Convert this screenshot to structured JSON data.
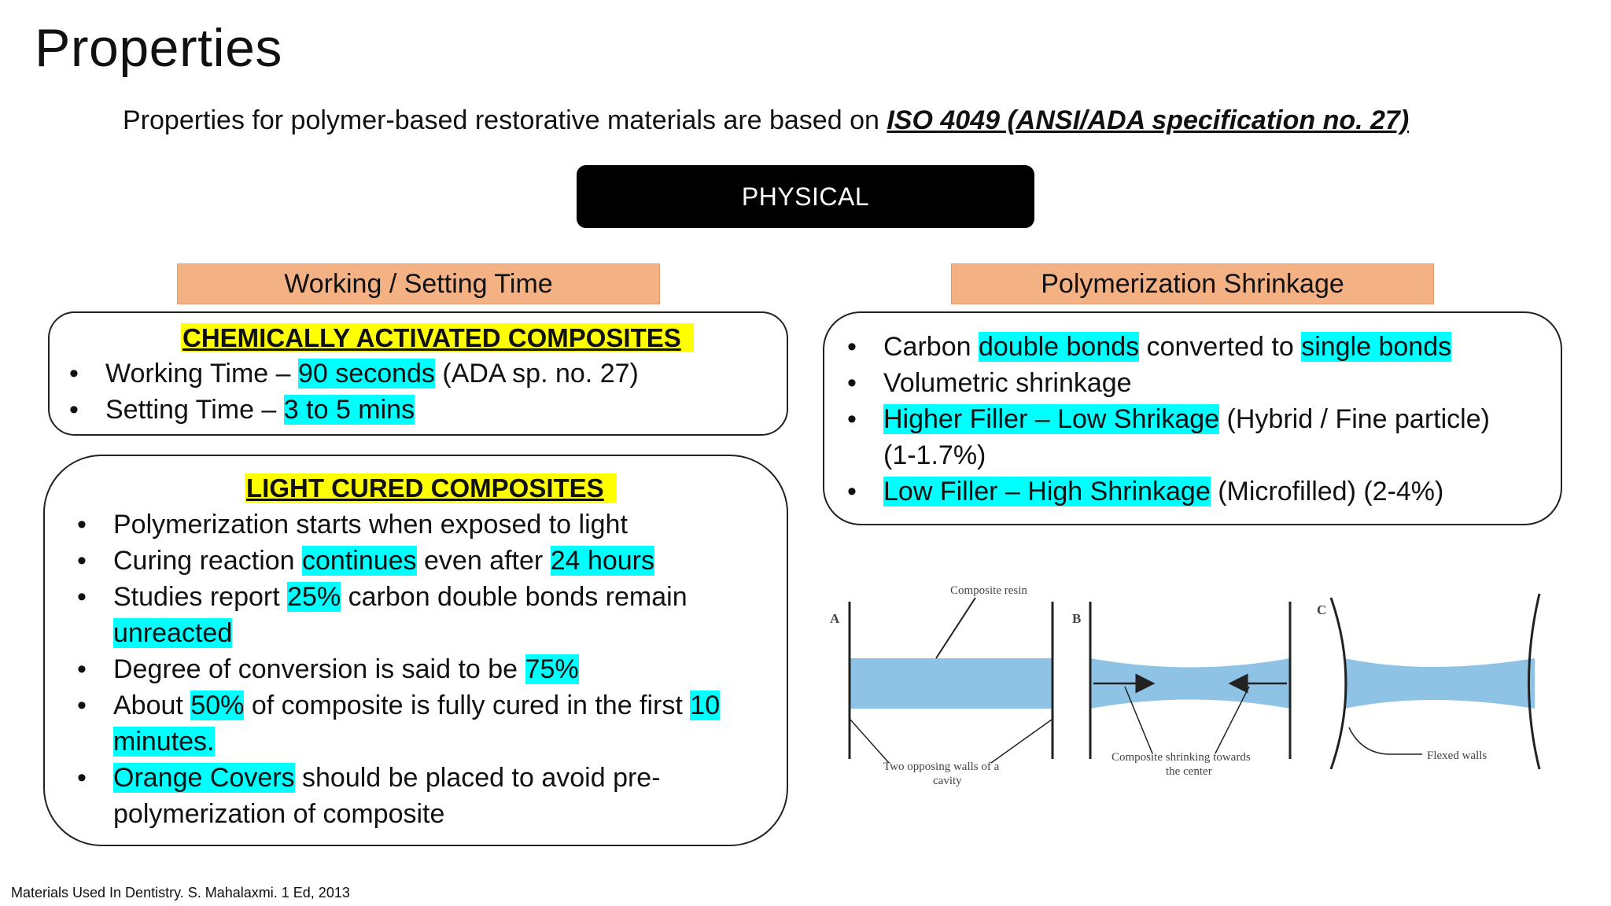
{
  "slide": {
    "title": "Properties",
    "subtitle_text": "Properties for polymer-based restorative materials are based on",
    "subtitle_ref": "ISO 4049 (ANSI/ADA specification no. 27)",
    "section_label": "PHYSICAL",
    "citation": "Materials Used In Dentistry. S. Mahalaxmi. 1 Ed, 2013"
  },
  "working_setting": {
    "header": "Working / Setting Time",
    "chemical": {
      "title": "CHEMICALLY ACTIVATED COMPOSITES",
      "working": {
        "pre": "Working Time –",
        "hl": "90 seconds",
        "post": "(ADA sp. no. 27)"
      },
      "setting": {
        "pre": "Setting Time –",
        "hl": "3 to 5 mins"
      }
    },
    "light": {
      "title": "LIGHT CURED COMPOSITES",
      "b1": "Polymerization starts when exposed to light",
      "b2": {
        "a": "Curing reaction",
        "hl1": "continues",
        "b": "even after",
        "hl2": "24 hours"
      },
      "b3": {
        "a": "Studies report",
        "hl1": "25%",
        "b": "carbon double bonds remain",
        "hl2": "unreacted"
      },
      "b4": {
        "a": "Degree of conversion is said to be",
        "hl1": "75%"
      },
      "b5": {
        "a": "About",
        "hl1": "50%",
        "b": "of composite is fully cured in the first",
        "hl2": "10",
        "hl3": "minutes."
      },
      "b6": {
        "hl1": "Orange Covers",
        "a": "should be placed to avoid pre-",
        "b": "polymerization of composite"
      }
    }
  },
  "shrinkage": {
    "header": "Polymerization Shrinkage",
    "b1": {
      "a": "Carbon",
      "hl1": "double bonds",
      "b": "converted to",
      "hl2": "single bonds"
    },
    "b2": "Volumetric shrinkage",
    "b3": {
      "hl1": "Higher Filler – Low Shrikage",
      "a": "(Hybrid / Fine particle)",
      "b": "(1-1.7%)"
    },
    "b4": {
      "hl1": "Low Filler – High Shrinkage",
      "a": "(Microfilled) (2-4%)"
    }
  },
  "figure": {
    "label_a": "A",
    "label_b": "B",
    "label_c": "C",
    "composite_resin": "Composite resin",
    "walls_1": "Two opposing walls of a",
    "walls_2": "cavity",
    "shrinking_1": "Composite shrinking towards",
    "shrinking_2": "the center",
    "flexed": "Flexed walls",
    "resin_color": "#8fc3e6"
  },
  "colors": {
    "highlight_cyan": "#00ffff",
    "highlight_yellow": "#ffff00",
    "header_orange": "#f4b183"
  }
}
